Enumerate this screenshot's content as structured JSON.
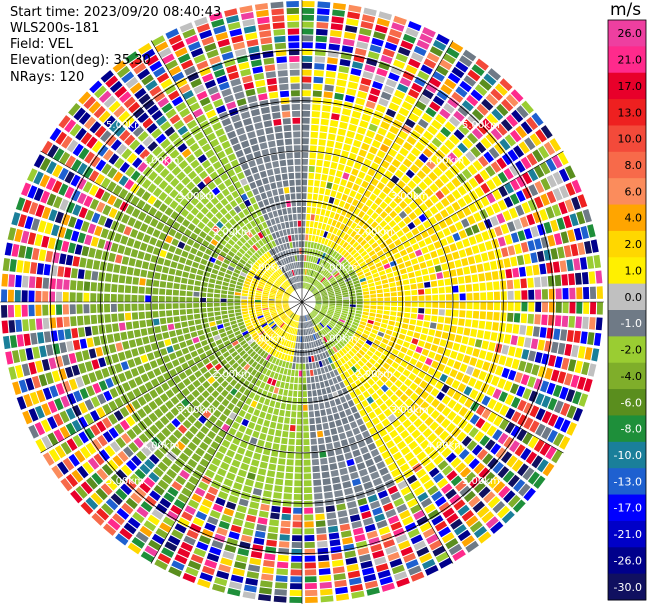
{
  "header": {
    "start_time": "Start time: 2023/09/20 08:40:43",
    "instrument": "WLS200s-181",
    "field": "Field: VEL",
    "elevation": "Elevation(deg): 35.30",
    "nrays": "NRays: 120"
  },
  "colorbar": {
    "title": "m/s",
    "ticks": [
      "26.0",
      "21.0",
      "17.0",
      "13.0",
      "10.0",
      "8.0",
      "6.0",
      "4.0",
      "2.0",
      "1.0",
      "0.0",
      "-1.0",
      "-2.0",
      "-4.0",
      "-6.0",
      "-8.0",
      "-10.0",
      "-13.0",
      "-17.0",
      "-21.0",
      "-26.0",
      "-30.0"
    ],
    "colors": [
      "#ee3fa0",
      "#ff2a8c",
      "#e8002a",
      "#ee2020",
      "#f34a3a",
      "#f76a4a",
      "#fb8c5c",
      "#ffa500",
      "#ffd700",
      "#fff000",
      "#c0c0c0",
      "#6f7a86",
      "#9acd32",
      "#7fae2a",
      "#5a8e1e",
      "#1e8f3a",
      "#1a7f9a",
      "#1e60d0",
      "#0000ff",
      "#0000c8",
      "#00008b",
      "#101060"
    ]
  },
  "chart_data": {
    "type": "heatmap",
    "projection": "polar-ppi",
    "field": "VEL",
    "units": "m/s",
    "nrays": 120,
    "range_rings_km": [
      1.0,
      2.0,
      3.0,
      4.0,
      5.0
    ],
    "ring_labels": [
      "1.00km",
      "2.00km",
      "3.00km",
      "4.00km",
      "5.00km"
    ],
    "max_range_km": 6.0,
    "value_range": [
      -30.0,
      26.0
    ],
    "spokes_deg": [
      0,
      30,
      60,
      90,
      120,
      150,
      180,
      210,
      240,
      270,
      300,
      330
    ]
  }
}
